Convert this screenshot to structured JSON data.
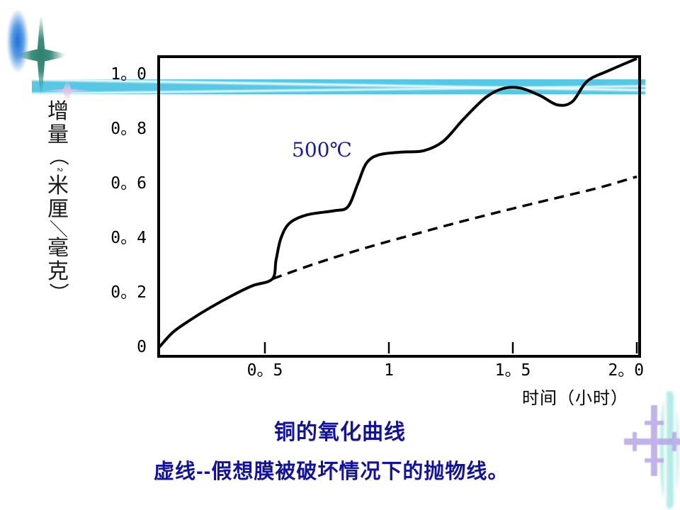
{
  "slide": {
    "background_color": "#ffffff",
    "accent_band_color": "#57c7e6",
    "caption_color": "#12129b",
    "curve_color": "#000000"
  },
  "chart": {
    "curve_label": "500℃",
    "curve_label_color": "#1b1b96",
    "x_axis_title": "时间（小时）",
    "y_axis_title": "增量（毫克/厘米²）",
    "y_axis_title_chars": [
      "增",
      "量",
      "（",
      "²",
      "米",
      "厘",
      "／",
      "毫",
      "克",
      "）"
    ],
    "y_ticks": [
      "1。0",
      "0。8",
      "0。6",
      "0。4",
      "0。2",
      "0"
    ],
    "x_ticks": [
      "0。5",
      "1",
      "1。5",
      "2。0"
    ]
  },
  "captions": {
    "title": "铜的氧化曲线",
    "subtitle": "虚线--假想膜被破坏情况下的抛物线。"
  },
  "chart_data": {
    "type": "line",
    "title": "铜的氧化曲线",
    "xlabel": "时间（小时）",
    "ylabel": "增量（毫克/厘米²）",
    "xlim": [
      0,
      2.0
    ],
    "ylim": [
      0,
      1.0
    ],
    "x_tick_values": [
      0.5,
      1.0,
      1.5,
      2.0
    ],
    "y_tick_values": [
      1.0,
      0.8,
      0.6,
      0.4,
      0.2,
      0
    ],
    "grid": false,
    "legend_position": "none",
    "annotation": "500℃",
    "series": [
      {
        "name": "铜的氧化曲线（500℃，实线）",
        "style": "solid",
        "points": [
          [
            0.074,
            0.0
          ],
          [
            0.13,
            0.055
          ],
          [
            0.2,
            0.1
          ],
          [
            0.28,
            0.145
          ],
          [
            0.37,
            0.19
          ],
          [
            0.45,
            0.225
          ],
          [
            0.53,
            0.25
          ],
          [
            0.545,
            0.32
          ],
          [
            0.565,
            0.4
          ],
          [
            0.6,
            0.455
          ],
          [
            0.67,
            0.485
          ],
          [
            0.78,
            0.5
          ],
          [
            0.835,
            0.515
          ],
          [
            0.875,
            0.6
          ],
          [
            0.91,
            0.675
          ],
          [
            0.96,
            0.705
          ],
          [
            1.05,
            0.715
          ],
          [
            1.14,
            0.72
          ],
          [
            1.22,
            0.755
          ],
          [
            1.3,
            0.835
          ],
          [
            1.39,
            0.915
          ],
          [
            1.46,
            0.948
          ],
          [
            1.53,
            0.95
          ],
          [
            1.61,
            0.922
          ],
          [
            1.68,
            0.888
          ],
          [
            1.74,
            0.9
          ],
          [
            1.8,
            0.975
          ],
          [
            1.89,
            1.015
          ],
          [
            2.0,
            1.058
          ]
        ]
      },
      {
        "name": "假想膜被破坏情况下的抛物线（虚线）",
        "style": "dashed",
        "points": [
          [
            0.53,
            0.25
          ],
          [
            0.7,
            0.305
          ],
          [
            0.9,
            0.362
          ],
          [
            1.1,
            0.413
          ],
          [
            1.3,
            0.462
          ],
          [
            1.5,
            0.508
          ],
          [
            1.7,
            0.552
          ],
          [
            1.85,
            0.585
          ],
          [
            2.0,
            0.625
          ]
        ]
      }
    ]
  }
}
